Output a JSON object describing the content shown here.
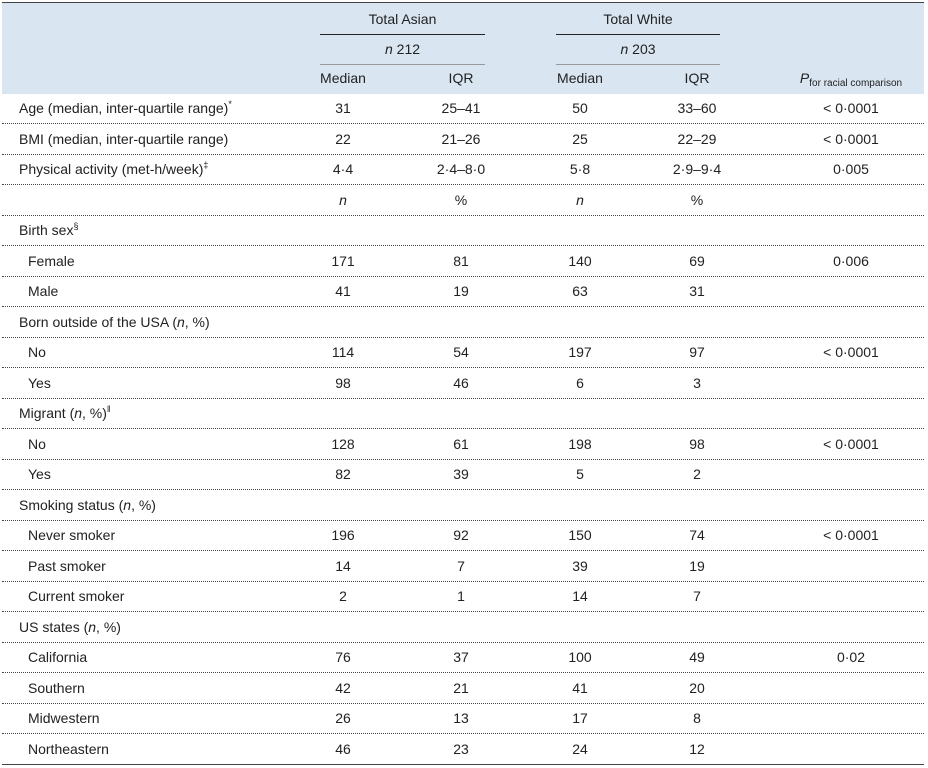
{
  "header": {
    "groups": [
      {
        "label": "Total Asian",
        "n_label": "n",
        "n_value": "212"
      },
      {
        "label": "Total White",
        "n_label": "n",
        "n_value": "203"
      }
    ],
    "columns": [
      "Median",
      "IQR",
      "Median",
      "IQR"
    ],
    "p_label": "P",
    "p_sub": "for racial comparison"
  },
  "rows": [
    {
      "label": [
        {
          "text": "Age (median, inter-quartile range)"
        },
        {
          "text": "*",
          "style": "sup"
        }
      ],
      "cells": [
        "31",
        "25–41",
        "50",
        "33–60",
        "< 0·0001"
      ]
    },
    {
      "label": [
        {
          "text": "BMI (median, inter-quartile range)"
        }
      ],
      "cells": [
        "22",
        "21–26",
        "25",
        "22–29",
        "< 0·0001"
      ]
    },
    {
      "label": [
        {
          "text": "Physical activity (met-h/week)"
        },
        {
          "text": "‡",
          "style": "sup"
        }
      ],
      "cells": [
        "4·4",
        "2·4–8·0",
        "5·8",
        "2·9–9·4",
        "0·005"
      ]
    },
    {
      "cells": [
        {
          "text": "n",
          "style": "italic"
        },
        "%",
        {
          "text": "n",
          "style": "italic"
        },
        "%",
        null
      ]
    },
    {
      "label": [
        {
          "text": "Birth sex"
        },
        {
          "text": "§",
          "style": "sup"
        }
      ]
    },
    {
      "label": [
        {
          "text": "Female"
        }
      ],
      "indent": true,
      "cells": [
        "171",
        "81",
        "140",
        "69",
        "0·006"
      ]
    },
    {
      "label": [
        {
          "text": "Male"
        }
      ],
      "indent": true,
      "cells": [
        "41",
        "19",
        "63",
        "31",
        null
      ]
    },
    {
      "label": [
        {
          "text": "Born outside of the USA ("
        },
        {
          "text": "n",
          "style": "italic"
        },
        {
          "text": ", %)"
        }
      ]
    },
    {
      "label": [
        {
          "text": "No"
        }
      ],
      "indent": true,
      "cells": [
        "114",
        "54",
        "197",
        "97",
        "< 0·0001"
      ]
    },
    {
      "label": [
        {
          "text": "Yes"
        }
      ],
      "indent": true,
      "cells": [
        "98",
        "46",
        "6",
        "3",
        null
      ]
    },
    {
      "label": [
        {
          "text": "Migrant ("
        },
        {
          "text": "n",
          "style": "italic"
        },
        {
          "text": ", %)"
        },
        {
          "text": "‖",
          "style": "sup"
        }
      ]
    },
    {
      "label": [
        {
          "text": "No"
        }
      ],
      "indent": true,
      "cells": [
        "128",
        "61",
        "198",
        "98",
        "< 0·0001"
      ]
    },
    {
      "label": [
        {
          "text": "Yes"
        }
      ],
      "indent": true,
      "cells": [
        "82",
        "39",
        "5",
        "2",
        null
      ]
    },
    {
      "label": [
        {
          "text": "Smoking status ("
        },
        {
          "text": "n",
          "style": "italic"
        },
        {
          "text": ", %)"
        }
      ]
    },
    {
      "label": [
        {
          "text": "Never smoker"
        }
      ],
      "indent": true,
      "cells": [
        "196",
        "92",
        "150",
        "74",
        "< 0·0001"
      ]
    },
    {
      "label": [
        {
          "text": "Past smoker"
        }
      ],
      "indent": true,
      "cells": [
        "14",
        "7",
        "39",
        "19",
        null
      ]
    },
    {
      "label": [
        {
          "text": "Current smoker"
        }
      ],
      "indent": true,
      "cells": [
        "2",
        "1",
        "14",
        "7",
        null
      ]
    },
    {
      "label": [
        {
          "text": "US states ("
        },
        {
          "text": "n",
          "style": "italic"
        },
        {
          "text": ", %)"
        }
      ]
    },
    {
      "label": [
        {
          "text": "California"
        }
      ],
      "indent": true,
      "cells": [
        "76",
        "37",
        "100",
        "49",
        "0·02"
      ]
    },
    {
      "label": [
        {
          "text": "Southern"
        }
      ],
      "indent": true,
      "cells": [
        "42",
        "21",
        "41",
        "20",
        null
      ]
    },
    {
      "label": [
        {
          "text": "Midwestern"
        }
      ],
      "indent": true,
      "cells": [
        "26",
        "13",
        "17",
        "8",
        null
      ]
    },
    {
      "label": [
        {
          "text": "Northeastern"
        }
      ],
      "indent": true,
      "cells": [
        "46",
        "23",
        "24",
        "12",
        null
      ]
    }
  ]
}
